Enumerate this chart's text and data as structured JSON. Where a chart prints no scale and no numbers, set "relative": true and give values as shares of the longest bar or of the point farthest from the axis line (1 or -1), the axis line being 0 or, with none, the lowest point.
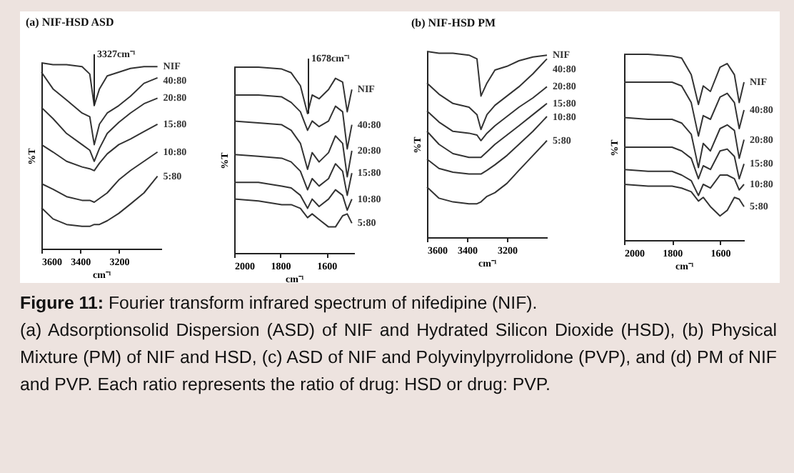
{
  "chart_data": [
    {
      "type": "line",
      "title": "(a) NIF-HSD ASD",
      "xlabel": "cm⁻¹",
      "ylabel": "%T",
      "relative": true,
      "xlim": [
        3600,
        2980
      ],
      "xticks": [
        3600,
        3400,
        3200
      ],
      "x": [
        3600,
        3540,
        3470,
        3390,
        3350,
        3327,
        3300,
        3260,
        3200,
        3140,
        3070,
        3000
      ],
      "series": [
        {
          "name": "NIF",
          "color": "#333333",
          "values": [
            1.0,
            0.99,
            0.99,
            0.98,
            0.94,
            0.77,
            0.86,
            0.93,
            0.95,
            0.97,
            0.98,
            0.98
          ]
        },
        {
          "name": "40:80",
          "color": "#333333",
          "values": [
            0.95,
            0.86,
            0.8,
            0.73,
            0.71,
            0.56,
            0.67,
            0.73,
            0.77,
            0.82,
            0.89,
            0.92
          ]
        },
        {
          "name": "20:80",
          "color": "#333333",
          "values": [
            0.76,
            0.7,
            0.62,
            0.56,
            0.53,
            0.47,
            0.54,
            0.62,
            0.68,
            0.73,
            0.78,
            0.81
          ]
        },
        {
          "name": "15:80",
          "color": "#333333",
          "values": [
            0.56,
            0.52,
            0.47,
            0.44,
            0.43,
            0.42,
            0.46,
            0.51,
            0.56,
            0.59,
            0.63,
            0.67
          ]
        },
        {
          "name": "10:80",
          "color": "#333333",
          "values": [
            0.35,
            0.32,
            0.28,
            0.26,
            0.26,
            0.25,
            0.27,
            0.3,
            0.37,
            0.42,
            0.47,
            0.52
          ]
        },
        {
          "name": "5:80",
          "color": "#333333",
          "values": [
            0.22,
            0.16,
            0.13,
            0.12,
            0.12,
            0.13,
            0.13,
            0.15,
            0.19,
            0.24,
            0.3,
            0.39
          ]
        }
      ],
      "annotations": [
        {
          "text": "3327cm⁻¹",
          "x": 3327,
          "y": 0.77
        },
        "Figure 11: Fourier transform infrared spectrum of nifedipine (NIF).",
        "(a) Adsorptionsolid Dispersion (ASD) of NIF and Hydrated Silicon Dioxide (HSD), (b) Physical Mixture (PM) of NIF and HSD, (c) ASD of NIF and Polyvinylpyrrolidone (PVP), and (d) PM of NIF and PVP. Each ratio represents the ratio of drug: HSD or drug: PVP."
      ]
    },
    {
      "type": "line",
      "xlabel": "cm⁻¹",
      "ylabel": "%T",
      "relative": true,
      "xlim": [
        2000,
        1480
      ],
      "xticks": [
        2000,
        1800,
        1600
      ],
      "x": [
        2000,
        1895,
        1794,
        1753,
        1713,
        1682,
        1662,
        1632,
        1591,
        1561,
        1530,
        1510,
        1490
      ],
      "series": [
        {
          "name": "NIF",
          "color": "#333333",
          "values": [
            1.0,
            1.0,
            0.99,
            0.97,
            0.9,
            0.75,
            0.85,
            0.83,
            0.88,
            0.94,
            0.92,
            0.76,
            0.88
          ]
        },
        {
          "name": "40:80",
          "color": "#333333",
          "values": [
            0.85,
            0.85,
            0.84,
            0.81,
            0.76,
            0.66,
            0.71,
            0.68,
            0.71,
            0.79,
            0.76,
            0.56,
            0.69
          ]
        },
        {
          "name": "20:80",
          "color": "#333333",
          "values": [
            0.71,
            0.7,
            0.69,
            0.66,
            0.59,
            0.45,
            0.54,
            0.49,
            0.54,
            0.63,
            0.59,
            0.41,
            0.55
          ]
        },
        {
          "name": "15:80",
          "color": "#333333",
          "values": [
            0.53,
            0.52,
            0.51,
            0.49,
            0.44,
            0.34,
            0.4,
            0.36,
            0.4,
            0.48,
            0.44,
            0.31,
            0.43
          ]
        },
        {
          "name": "10:80",
          "color": "#333333",
          "values": [
            0.38,
            0.38,
            0.36,
            0.35,
            0.31,
            0.24,
            0.29,
            0.25,
            0.29,
            0.34,
            0.31,
            0.23,
            0.29
          ]
        },
        {
          "name": "5:80",
          "color": "#333333",
          "values": [
            0.29,
            0.28,
            0.26,
            0.26,
            0.24,
            0.19,
            0.21,
            0.18,
            0.14,
            0.14,
            0.2,
            0.21,
            0.16
          ]
        }
      ],
      "annotations": [
        {
          "text": "1678cm⁻¹",
          "x": 1678,
          "y": 0.75
        }
      ]
    },
    {
      "type": "line",
      "title": "(b) NIF-HSD PM",
      "xlabel": "cm⁻¹",
      "ylabel": "%T",
      "relative": true,
      "xlim": [
        3600,
        3000
      ],
      "xticks": [
        3600,
        3400,
        3200
      ],
      "x": [
        3600,
        3540,
        3470,
        3390,
        3350,
        3330,
        3300,
        3260,
        3200,
        3140,
        3070,
        3000
      ],
      "series": [
        {
          "name": "NIF",
          "color": "#333333",
          "values": [
            1.0,
            0.99,
            0.99,
            0.98,
            0.96,
            0.76,
            0.83,
            0.9,
            0.92,
            0.95,
            0.97,
            0.98
          ]
        },
        {
          "name": "40:80",
          "color": "#333333",
          "values": [
            0.83,
            0.77,
            0.72,
            0.7,
            0.66,
            0.58,
            0.66,
            0.71,
            0.76,
            0.81,
            0.88,
            0.96
          ]
        },
        {
          "name": "20:80",
          "color": "#333333",
          "values": [
            0.68,
            0.62,
            0.57,
            0.56,
            0.55,
            0.52,
            0.56,
            0.6,
            0.65,
            0.7,
            0.75,
            0.81
          ]
        },
        {
          "name": "15:80",
          "color": "#333333",
          "values": [
            0.57,
            0.5,
            0.45,
            0.43,
            0.43,
            0.43,
            0.46,
            0.5,
            0.55,
            0.6,
            0.66,
            0.72
          ]
        },
        {
          "name": "10:80",
          "color": "#333333",
          "values": [
            0.42,
            0.37,
            0.35,
            0.34,
            0.34,
            0.34,
            0.36,
            0.39,
            0.44,
            0.5,
            0.57,
            0.65
          ]
        },
        {
          "name": "5:80",
          "color": "#333333",
          "values": [
            0.27,
            0.21,
            0.19,
            0.18,
            0.18,
            0.19,
            0.22,
            0.24,
            0.29,
            0.36,
            0.44,
            0.52
          ]
        }
      ]
    },
    {
      "type": "line",
      "xlabel": "cm⁻¹",
      "ylabel": "%T",
      "relative": true,
      "xlim": [
        2000,
        1500
      ],
      "xticks": [
        2000,
        1800,
        1600
      ],
      "x": [
        2000,
        1900,
        1800,
        1760,
        1720,
        1690,
        1670,
        1640,
        1600,
        1570,
        1540,
        1520,
        1500
      ],
      "series": [
        {
          "name": "NIF",
          "color": "#333333",
          "values": [
            1.0,
            1.0,
            0.99,
            0.98,
            0.89,
            0.73,
            0.83,
            0.8,
            0.93,
            0.95,
            0.89,
            0.74,
            0.85
          ]
        },
        {
          "name": "40:80",
          "color": "#333333",
          "values": [
            0.85,
            0.85,
            0.85,
            0.83,
            0.74,
            0.56,
            0.67,
            0.65,
            0.77,
            0.79,
            0.74,
            0.6,
            0.7
          ]
        },
        {
          "name": "20:80",
          "color": "#333333",
          "values": [
            0.66,
            0.65,
            0.65,
            0.63,
            0.57,
            0.39,
            0.52,
            0.48,
            0.6,
            0.62,
            0.59,
            0.44,
            0.54
          ]
        },
        {
          "name": "15:80",
          "color": "#333333",
          "values": [
            0.5,
            0.5,
            0.5,
            0.48,
            0.44,
            0.33,
            0.4,
            0.38,
            0.48,
            0.49,
            0.45,
            0.33,
            0.41
          ]
        },
        {
          "name": "10:80",
          "color": "#333333",
          "values": [
            0.38,
            0.37,
            0.37,
            0.35,
            0.32,
            0.24,
            0.3,
            0.28,
            0.35,
            0.35,
            0.33,
            0.27,
            0.3
          ]
        },
        {
          "name": "5:80",
          "color": "#333333",
          "values": [
            0.3,
            0.29,
            0.29,
            0.28,
            0.26,
            0.21,
            0.23,
            0.18,
            0.13,
            0.16,
            0.23,
            0.22,
            0.18
          ]
        }
      ]
    }
  ]
}
